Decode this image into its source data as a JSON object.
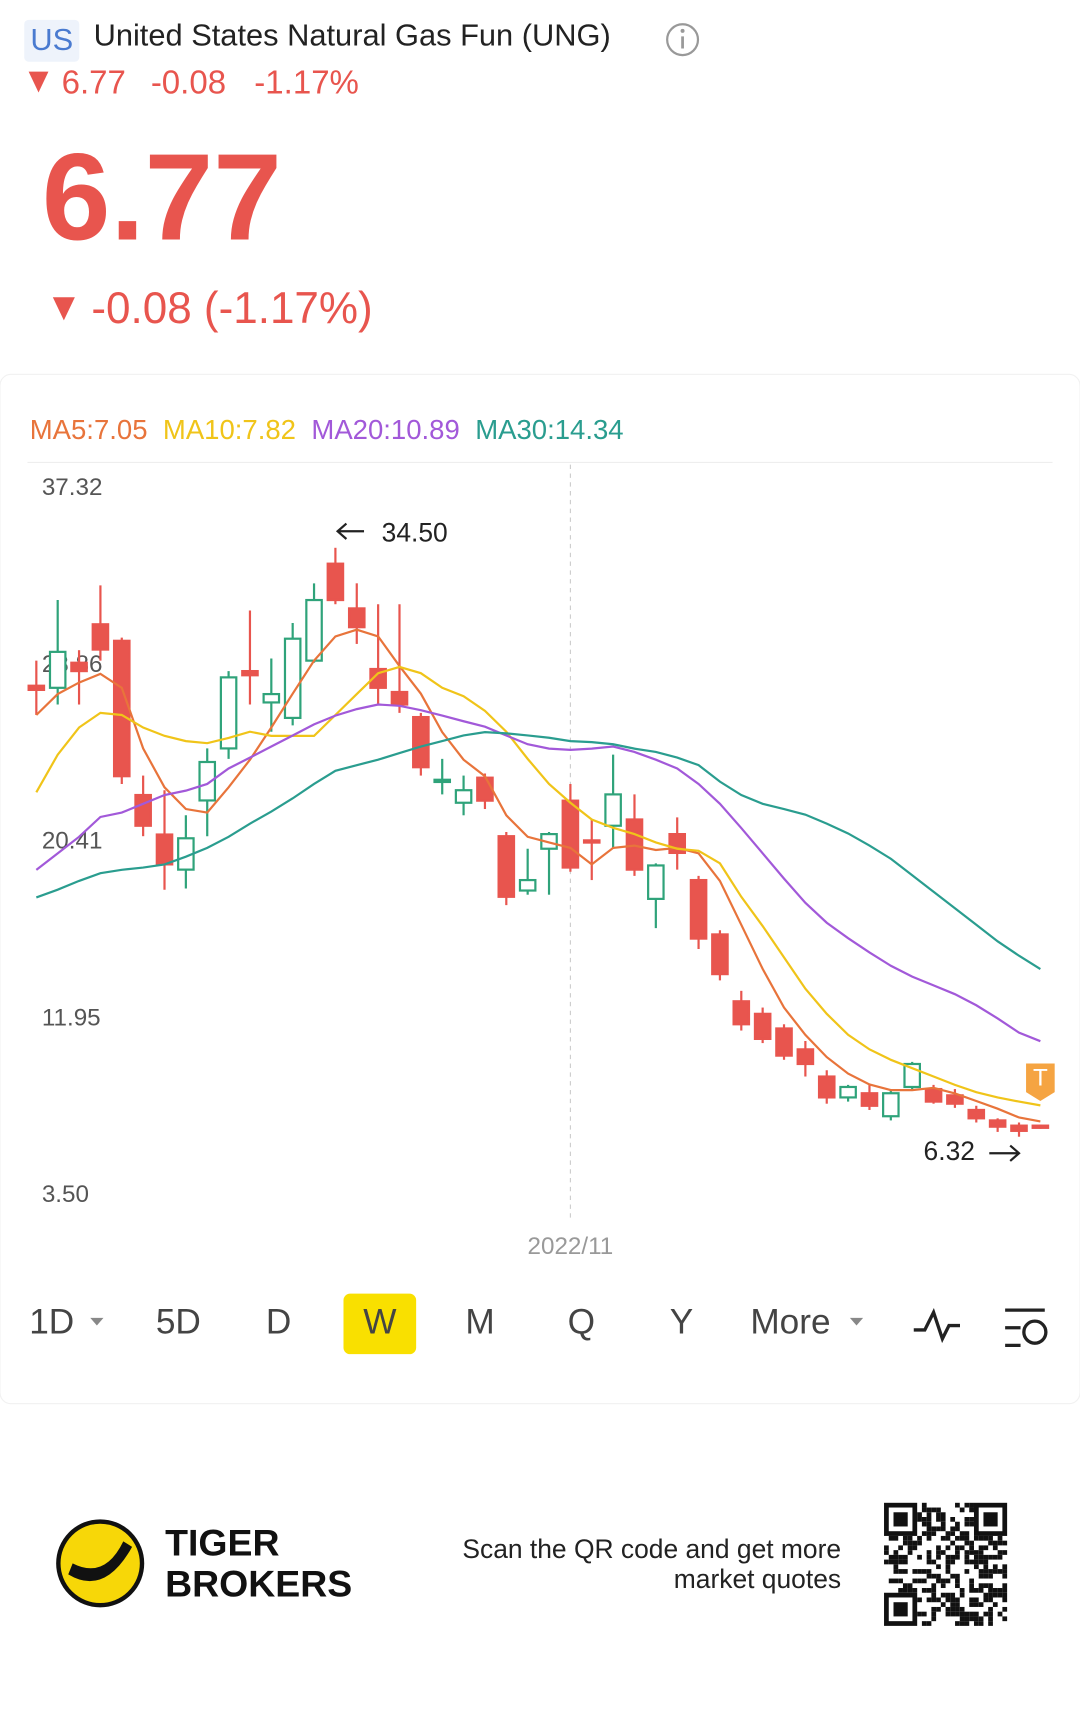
{
  "header": {
    "market": "US",
    "name": "United States Natural Gas Fun (UNG)",
    "price": "6.77",
    "change": "-0.08",
    "change_pct": "-1.17%",
    "big_price": "6.77",
    "big_change": "-0.08 (-1.17%)"
  },
  "chart_data": {
    "type": "candlestick",
    "categories": [
      null,
      null,
      null,
      null,
      null,
      null,
      null,
      null,
      null,
      null,
      null,
      null,
      null,
      null,
      null,
      null,
      null,
      null,
      null,
      null,
      null,
      null,
      null,
      null,
      null,
      "2022/11",
      null,
      null,
      null,
      null,
      null,
      null,
      null,
      null,
      null,
      null,
      null,
      null,
      null,
      null,
      null,
      null,
      null,
      null,
      null,
      null,
      null,
      null
    ],
    "open": [
      27.9,
      27.8,
      29.0,
      30.84,
      30.05,
      22.67,
      20.78,
      19.1,
      22.41,
      24.9,
      28.6,
      27.1,
      26.36,
      29.1,
      33.74,
      31.6,
      28.7,
      27.6,
      26.4,
      23.3,
      22.3,
      23.5,
      20.7,
      18.1,
      20.1,
      22.4,
      20.5,
      21.2,
      21.5,
      17.7,
      20.8,
      18.6,
      16.0,
      12.8,
      12.2,
      11.5,
      10.5,
      9.2,
      8.2,
      8.4,
      7.3,
      8.7,
      8.6,
      8.3,
      7.6,
      7.1,
      6.85,
      6.85
    ],
    "high": [
      29.1,
      32.0,
      29.6,
      32.7,
      30.2,
      23.6,
      22.9,
      21.7,
      24.9,
      28.6,
      31.5,
      29.2,
      30.9,
      32.8,
      34.5,
      32.8,
      31.8,
      31.8,
      26.6,
      24.4,
      23.6,
      23.7,
      20.9,
      20.1,
      20.9,
      23.2,
      21.5,
      24.6,
      22.7,
      19.4,
      21.6,
      18.8,
      16.2,
      13.3,
      12.5,
      11.7,
      10.9,
      9.5,
      8.8,
      8.8,
      8.6,
      9.9,
      8.8,
      8.6,
      7.8,
      7.2,
      7.0,
      6.9
    ],
    "low": [
      26.5,
      27.0,
      27.0,
      29.1,
      23.2,
      20.7,
      18.14,
      18.2,
      20.7,
      24.4,
      27.0,
      25.7,
      26.0,
      29.0,
      31.8,
      29.9,
      27.0,
      26.6,
      23.6,
      22.7,
      21.7,
      22.0,
      17.4,
      17.9,
      17.9,
      19.0,
      18.6,
      20.1,
      18.8,
      16.3,
      19.1,
      15.3,
      13.8,
      11.4,
      10.8,
      10.0,
      9.2,
      7.9,
      8.0,
      7.6,
      7.1,
      8.6,
      7.9,
      7.7,
      7.0,
      6.55,
      6.32,
      6.7
    ],
    "close": [
      27.7,
      29.52,
      28.6,
      29.63,
      23.57,
      21.2,
      19.35,
      20.6,
      24.25,
      28.3,
      28.4,
      27.5,
      30.15,
      32.0,
      32.0,
      30.7,
      27.8,
      27.0,
      24.0,
      23.4,
      22.9,
      22.4,
      17.8,
      18.6,
      20.8,
      19.2,
      20.4,
      22.7,
      19.1,
      19.3,
      19.9,
      15.8,
      14.1,
      11.7,
      11.0,
      10.2,
      9.8,
      8.2,
      8.7,
      7.8,
      8.4,
      9.8,
      8.0,
      7.9,
      7.2,
      6.8,
      6.6,
      6.77
    ],
    "up_color": "#2fa37a",
    "down_color": "#e8554e",
    "series": [
      {
        "name": "MA5:7.05",
        "color": "#e8743b",
        "values": [
          26.5,
          27.5,
          28.05,
          28.47,
          27.8,
          24.9,
          23.04,
          22.0,
          21.83,
          23.04,
          24.36,
          25.9,
          27.52,
          29.1,
          30.26,
          30.58,
          30.26,
          28.84,
          27.52,
          25.68,
          24.36,
          23.57,
          21.7,
          20.67,
          20.4,
          20.14,
          19.35,
          20.14,
          20.25,
          20.04,
          20.14,
          19.88,
          18.56,
          16.46,
          14.35,
          12.5,
          11.19,
          10.13,
          9.34,
          8.82,
          8.55,
          8.55,
          8.66,
          8.39,
          8.03,
          7.66,
          7.24,
          7.05
        ]
      },
      {
        "name": "MA10:7.82",
        "color": "#f0c419",
        "values": [
          22.8,
          24.6,
          25.9,
          26.6,
          26.5,
          25.9,
          25.5,
          25.25,
          25.15,
          25.4,
          25.7,
          25.5,
          25.5,
          25.5,
          26.5,
          27.5,
          28.5,
          28.8,
          28.5,
          27.8,
          27.4,
          26.7,
          25.7,
          24.4,
          23.2,
          22.3,
          21.5,
          21.1,
          20.8,
          20.4,
          20.1,
          20.0,
          19.4,
          17.8,
          16.4,
          14.9,
          13.4,
          12.2,
          11.2,
          10.5,
          10.0,
          9.6,
          9.2,
          8.8,
          8.45,
          8.2,
          8.0,
          7.82
        ]
      },
      {
        "name": "MA20:10.89",
        "color": "#a259d9",
        "values": [
          19.09,
          19.88,
          20.67,
          21.62,
          21.83,
          22.25,
          22.67,
          22.88,
          23.2,
          23.94,
          24.46,
          24.99,
          25.52,
          26.05,
          26.47,
          26.78,
          27.0,
          26.94,
          26.73,
          26.47,
          26.2,
          25.94,
          25.52,
          25.1,
          24.89,
          24.83,
          24.89,
          24.99,
          24.73,
          24.36,
          23.94,
          23.2,
          22.25,
          21.09,
          19.88,
          18.67,
          17.51,
          16.56,
          15.82,
          15.14,
          14.5,
          13.98,
          13.56,
          13.14,
          12.61,
          11.98,
          11.3,
          10.89
        ]
      },
      {
        "name": "MA30:14.34",
        "color": "#2a9d8f",
        "values": [
          17.77,
          18.14,
          18.56,
          18.93,
          19.09,
          19.2,
          19.35,
          19.72,
          20.14,
          20.67,
          21.3,
          21.88,
          22.51,
          23.2,
          23.83,
          24.1,
          24.36,
          24.68,
          24.99,
          25.25,
          25.52,
          25.68,
          25.62,
          25.52,
          25.41,
          25.25,
          25.2,
          25.1,
          24.89,
          24.73,
          24.46,
          24.1,
          23.31,
          22.67,
          22.25,
          22.0,
          21.73,
          21.3,
          20.83,
          20.25,
          19.62,
          18.83,
          18.04,
          17.25,
          16.46,
          15.67,
          14.98,
          14.34
        ]
      }
    ],
    "ylim": [
      3.5,
      37.32
    ],
    "yticks": [
      {
        "value": 37.32,
        "label": "37.32"
      },
      {
        "value": 28.86,
        "label": "28.86"
      },
      {
        "value": 20.41,
        "label": "20.41"
      },
      {
        "value": 11.95,
        "label": "11.95"
      },
      {
        "value": 3.5,
        "label": "3.50"
      }
    ],
    "grid": false,
    "high_annotation": "34.50",
    "low_annotation": "6.32",
    "marker": "T"
  },
  "periods": [
    "1D",
    "5D",
    "D",
    "W",
    "M",
    "Q",
    "Y",
    "More"
  ],
  "selected_period": "W",
  "footer": {
    "brand_line1": "TIGER",
    "brand_line2": "BROKERS",
    "promo_line1": "Scan the QR code and get more",
    "promo_line2": "market quotes"
  }
}
